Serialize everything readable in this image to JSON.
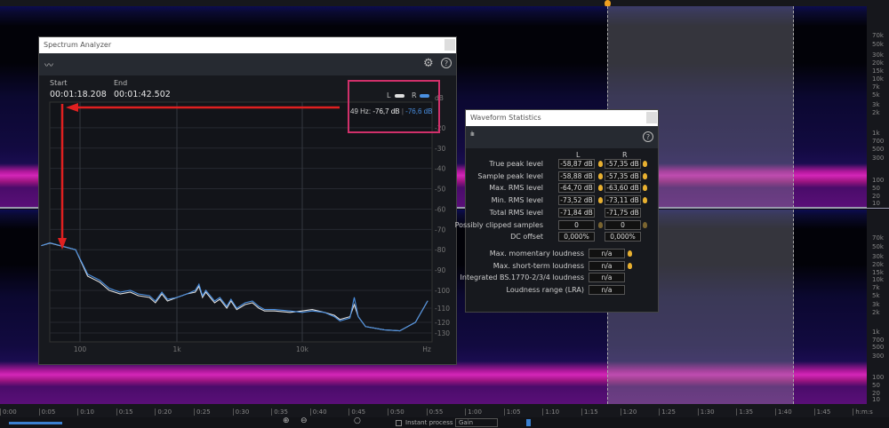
{
  "editor": {
    "time_ticks": [
      "0:00",
      "0:05",
      "0:10",
      "0:15",
      "0:20",
      "0:25",
      "0:30",
      "0:35",
      "0:40",
      "0:45",
      "0:50",
      "0:55",
      "1:00",
      "1:05",
      "1:10",
      "1:15",
      "1:20",
      "1:25",
      "1:30",
      "1:35",
      "1:40",
      "1:45",
      "h:m:s"
    ],
    "freq_ruler": [
      "70k",
      "50k",
      "30k",
      "20k",
      "15k",
      "10k",
      "7k",
      "5k",
      "3k",
      "2k",
      "1k",
      "700",
      "500",
      "300",
      "100",
      "50",
      "20",
      "10"
    ],
    "toolbar": {
      "instant_process_label": "Instant process",
      "mode_value": "Gain"
    },
    "colors": {
      "playhead": "#f0a020",
      "spectrogram_hot": "#d426b8"
    }
  },
  "spectrum_analyzer": {
    "title": "Spectrum Analyzer",
    "start_label": "Start",
    "start_value": "00:01:18.208",
    "end_label": "End",
    "end_value": "00:01:42.502",
    "legend": {
      "l": "L",
      "r": "R"
    },
    "readout": {
      "freq": "49 Hz:",
      "l_value": "-76,7 dB",
      "sep": "|",
      "r_value": "-76,6 dB"
    },
    "colors": {
      "l": "#e0e0e0",
      "r": "#4a90e2",
      "annotation": "#e02020",
      "highlight": "#d0306a"
    }
  },
  "chart_data": {
    "type": "line",
    "xscale": "log",
    "xlim": [
      40,
      110000
    ],
    "ylim": [
      -135,
      -10
    ],
    "x_ticks": [
      "100",
      "1k",
      "10k",
      "Hz"
    ],
    "y_ticks": [
      "dB",
      "-20",
      "-30",
      "-40",
      "-50",
      "-60",
      "-70",
      "-80",
      "-90",
      "-100",
      "-110",
      "-120",
      "-130"
    ],
    "grid": true,
    "series": [
      {
        "name": "L",
        "color": "#e0e0e0",
        "x": [
          40,
          49,
          90,
          120,
          160,
          200,
          260,
          330,
          400,
          520,
          600,
          700,
          800,
          1000,
          1200,
          1400,
          1500,
          1600,
          1700,
          2000,
          2200,
          2500,
          2700,
          3000,
          3500,
          4000,
          4500,
          5000,
          6000,
          8000,
          10000,
          12000,
          15000,
          18000,
          20000,
          24000,
          26000,
          28000,
          32000,
          45000,
          60000,
          80000,
          100000
        ],
        "y": [
          -78,
          -76.7,
          -80,
          -93,
          -96,
          -100,
          -102,
          -101,
          -103,
          -104,
          -107,
          -102,
          -106,
          -104,
          -102,
          -101,
          -98,
          -104,
          -101,
          -107,
          -105,
          -110,
          -106,
          -111,
          -108,
          -107,
          -110,
          -112,
          -112,
          -113,
          -112,
          -111,
          -113,
          -115,
          -118,
          -116,
          -108,
          -116,
          -124,
          -127,
          -128,
          -120,
          -106
        ]
      },
      {
        "name": "R",
        "color": "#4a90e2",
        "x": [
          40,
          49,
          90,
          120,
          160,
          200,
          260,
          330,
          400,
          520,
          600,
          700,
          800,
          1000,
          1200,
          1400,
          1500,
          1600,
          1700,
          2000,
          2200,
          2500,
          2700,
          3000,
          3500,
          4000,
          4500,
          5000,
          6000,
          8000,
          10000,
          12000,
          15000,
          18000,
          20000,
          24000,
          26000,
          28000,
          32000,
          45000,
          60000,
          80000,
          100000
        ],
        "y": [
          -78,
          -76.6,
          -80,
          -92,
          -95,
          -99,
          -101,
          -100,
          -102,
          -103,
          -106,
          -101,
          -105,
          -104,
          -102,
          -100,
          -97,
          -103,
          -100,
          -106,
          -104,
          -109,
          -105,
          -110,
          -107,
          -106,
          -109,
          -111,
          -111,
          -112,
          -113,
          -112,
          -113,
          -116,
          -119,
          -117,
          -104,
          -116,
          -124,
          -127,
          -128,
          -120,
          -106
        ]
      }
    ]
  },
  "waveform_statistics": {
    "title": "Waveform Statistics",
    "col_l": "L",
    "col_r": "R",
    "rows": [
      {
        "label": "True peak level",
        "l": "-58,87 dB",
        "r": "-57,35 dB",
        "bulb": true
      },
      {
        "label": "Sample peak level",
        "l": "-58,88 dB",
        "r": "-57,35 dB",
        "bulb": true
      },
      {
        "label": "Max. RMS level",
        "l": "-64,70 dB",
        "r": "-63,60 dB",
        "bulb": true
      },
      {
        "label": "Min. RMS level",
        "l": "-73,52 dB",
        "r": "-73,11 dB",
        "bulb": true
      },
      {
        "label": "Total RMS level",
        "l": "-71,84 dB",
        "r": "-71,75 dB",
        "bulb": false
      },
      {
        "label": "Possibly clipped samples",
        "l": "0",
        "r": "0",
        "bulb": "dim"
      },
      {
        "label": "DC offset",
        "l": "0,000%",
        "r": "0,000%",
        "bulb": false
      }
    ],
    "loudness": [
      {
        "label": "Max. momentary loudness",
        "value": "n/a",
        "bulb": true
      },
      {
        "label": "Max. short-term loudness",
        "value": "n/a",
        "bulb": true
      },
      {
        "label": "Integrated BS.1770-2/3/4 loudness",
        "value": "n/a",
        "bulb": false
      },
      {
        "label": "Loudness range (LRA)",
        "value": "n/a",
        "bulb": false
      }
    ]
  }
}
